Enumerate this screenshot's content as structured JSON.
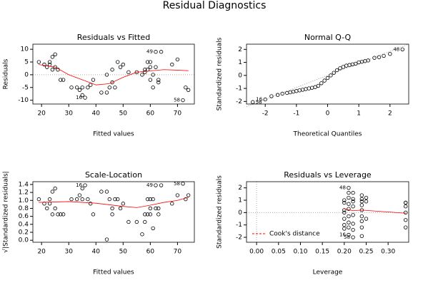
{
  "title": "Residual Diagnostics",
  "chart_data": [
    {
      "type": "scatter",
      "title": "Residuals vs Fitted",
      "x_label": "Fitted values",
      "y_label": "Residuals",
      "xlim": [
        16.8,
        76.2
      ],
      "ylim": [
        -11.5,
        12
      ],
      "xticks": [
        20,
        30,
        40,
        50,
        60,
        70
      ],
      "yticks": [
        -10,
        -5,
        0,
        5,
        10
      ],
      "hline": 0,
      "color": "#000000",
      "x": [
        19,
        21,
        22,
        23,
        23,
        24,
        24,
        25,
        25,
        26,
        27,
        28,
        31,
        33,
        34,
        35,
        35,
        36,
        37,
        38,
        39,
        42,
        44,
        44,
        45,
        46,
        46,
        47,
        48,
        49,
        50,
        52,
        55,
        57,
        58,
        58,
        59,
        59,
        60,
        60,
        60,
        61,
        61,
        62,
        62,
        63,
        63,
        64,
        68,
        70,
        72,
        73,
        74
      ],
      "values": [
        5,
        4,
        3,
        5,
        4,
        7,
        2,
        8,
        3,
        2,
        -2,
        -2,
        -5,
        -5,
        -6,
        -5,
        -8,
        -9,
        -5,
        -4,
        -2,
        -7,
        -7,
        0,
        -5,
        2,
        -3,
        -5,
        5,
        3,
        4,
        1,
        1,
        0,
        1,
        2,
        2,
        5,
        5,
        3,
        -2,
        0,
        -5,
        9,
        3,
        -3,
        -2,
        9,
        4,
        6,
        -10,
        -5,
        -6
      ],
      "point_labels": [
        null,
        null,
        null,
        null,
        null,
        null,
        null,
        null,
        null,
        null,
        null,
        null,
        null,
        null,
        null,
        null,
        null,
        "16",
        null,
        null,
        null,
        null,
        null,
        null,
        null,
        null,
        null,
        null,
        null,
        null,
        null,
        null,
        null,
        null,
        null,
        null,
        null,
        null,
        null,
        null,
        null,
        null,
        null,
        "49",
        null,
        null,
        null,
        null,
        null,
        null,
        "58",
        null,
        null
      ],
      "smooth": {
        "color": "#ff0000",
        "x": [
          19,
          25,
          30,
          35,
          40,
          45,
          50,
          55,
          60,
          65,
          70,
          74
        ],
        "values": [
          4,
          3,
          0,
          -2,
          -4,
          -3.5,
          -1,
          1,
          1.5,
          2,
          1.8,
          1.6
        ]
      }
    },
    {
      "type": "scatter",
      "title": "Normal Q-Q",
      "x_label": "Theoretical Quantiles",
      "y_label": "Standardized residuals",
      "xlim": [
        -2.6,
        2.6
      ],
      "ylim": [
        -2.2,
        2.4
      ],
      "xticks": [
        -2,
        -1,
        0,
        1,
        2
      ],
      "yticks": [
        -2,
        -1,
        0,
        1,
        2
      ],
      "color": "#000000",
      "x": [
        -2.4,
        -2.0,
        -1.8,
        -1.6,
        -1.45,
        -1.3,
        -1.2,
        -1.1,
        -1.0,
        -0.9,
        -0.8,
        -0.7,
        -0.6,
        -0.5,
        -0.4,
        -0.3,
        -0.2,
        -0.1,
        0,
        0.1,
        0.2,
        0.3,
        0.4,
        0.5,
        0.6,
        0.7,
        0.8,
        0.9,
        1.0,
        1.1,
        1.2,
        1.3,
        1.5,
        1.65,
        1.8,
        2.0,
        2.4
      ],
      "values": [
        -2.05,
        -1.85,
        -1.6,
        -1.5,
        -1.4,
        -1.35,
        -1.3,
        -1.25,
        -1.2,
        -1.15,
        -1.1,
        -1.05,
        -1.0,
        -0.95,
        -0.9,
        -0.8,
        -0.6,
        -0.4,
        -0.2,
        0,
        0.2,
        0.4,
        0.55,
        0.65,
        0.75,
        0.8,
        0.85,
        0.9,
        1.0,
        1.05,
        1.1,
        1.15,
        1.35,
        1.4,
        1.5,
        1.65,
        2.0
      ],
      "point_labels": [
        "58",
        "16",
        null,
        null,
        null,
        null,
        null,
        null,
        null,
        null,
        null,
        null,
        null,
        null,
        null,
        null,
        null,
        null,
        null,
        null,
        null,
        null,
        null,
        null,
        null,
        null,
        null,
        null,
        null,
        null,
        null,
        null,
        null,
        null,
        null,
        null,
        "48"
      ],
      "reference_line": {
        "color": "#999999",
        "x": [
          -2.6,
          2.6
        ],
        "values": [
          -2.4,
          2.4
        ]
      }
    },
    {
      "type": "scatter",
      "title": "Scale-Location",
      "x_label": "Fitted values",
      "y_label": "√|Standardized residuals|",
      "xlim": [
        16.8,
        76.2
      ],
      "ylim": [
        -0.05,
        1.47
      ],
      "xticks": [
        20,
        30,
        40,
        50,
        60,
        70
      ],
      "yticks": [
        {
          "value": 0,
          "label": "0.0"
        },
        0.2,
        0.4,
        0.6,
        0.8,
        {
          "value": 1,
          "label": "1.0"
        },
        1.2,
        1.4
      ],
      "color": "#000000",
      "x": [
        19,
        21,
        22,
        23,
        23,
        24,
        24,
        25,
        25,
        26,
        27,
        28,
        31,
        33,
        34,
        35,
        35,
        36,
        37,
        38,
        39,
        42,
        44,
        44,
        45,
        46,
        46,
        47,
        48,
        49,
        50,
        52,
        55,
        57,
        58,
        58,
        59,
        59,
        60,
        60,
        60,
        61,
        61,
        62,
        62,
        63,
        63,
        64,
        68,
        70,
        72,
        73,
        74
      ],
      "values": [
        1.03,
        0.92,
        0.8,
        1.03,
        0.92,
        1.22,
        0.65,
        1.3,
        0.8,
        0.65,
        0.65,
        0.65,
        1.03,
        1.03,
        1.13,
        1.03,
        1.3,
        1.38,
        1.03,
        0.92,
        0.65,
        1.22,
        1.22,
        0.02,
        1.03,
        0.65,
        0.8,
        1.03,
        1.03,
        0.8,
        0.92,
        0.46,
        0.46,
        0.15,
        0.46,
        0.65,
        0.65,
        1.03,
        1.03,
        0.8,
        0.65,
        0.3,
        1.03,
        1.38,
        0.8,
        0.8,
        0.65,
        1.38,
        0.92,
        1.13,
        1.42,
        1.03,
        1.13
      ],
      "point_labels": [
        null,
        null,
        null,
        null,
        null,
        null,
        null,
        null,
        null,
        null,
        null,
        null,
        null,
        null,
        null,
        null,
        null,
        "16",
        null,
        null,
        null,
        null,
        null,
        null,
        null,
        null,
        null,
        null,
        null,
        null,
        null,
        null,
        null,
        null,
        null,
        null,
        null,
        null,
        null,
        null,
        null,
        null,
        null,
        "49",
        null,
        null,
        null,
        null,
        null,
        null,
        "58",
        null,
        null
      ],
      "smooth": {
        "color": "#ff0000",
        "x": [
          19,
          30,
          40,
          50,
          55,
          60,
          65,
          70,
          74
        ],
        "values": [
          0.95,
          0.97,
          0.93,
          0.85,
          0.82,
          0.88,
          0.95,
          1.0,
          1.08
        ]
      }
    },
    {
      "type": "scatter",
      "title": "Residuals vs Leverage",
      "x_label": "Leverage",
      "y_label": "Standardized residuals",
      "xlim": [
        -0.023,
        0.347
      ],
      "ylim": [
        -2.4,
        2.5
      ],
      "xticks": [
        {
          "value": 0,
          "label": "0.00"
        },
        0.05,
        {
          "value": 0.1,
          "label": "0.10"
        },
        0.15,
        {
          "value": 0.2,
          "label": "0.20"
        },
        0.25,
        {
          "value": 0.3,
          "label": "0.30"
        }
      ],
      "yticks": [
        -2,
        -1,
        0,
        1,
        2
      ],
      "hline": 0,
      "vline": 0,
      "color": "#000000",
      "x": [
        0.2,
        0.2,
        0.2,
        0.2,
        0.2,
        0.2,
        0.2,
        0.21,
        0.21,
        0.21,
        0.21,
        0.21,
        0.21,
        0.21,
        0.21,
        0.21,
        0.22,
        0.22,
        0.22,
        0.22,
        0.22,
        0.22,
        0.22,
        0.22,
        0.24,
        0.24,
        0.24,
        0.24,
        0.24,
        0.24,
        0.24,
        0.24,
        0.24,
        0.25,
        0.25,
        0.25,
        0.34,
        0.34,
        0.34,
        0.34,
        0.34,
        0.34
      ],
      "values": [
        -1.3,
        -1.0,
        -0.5,
        0,
        0.2,
        0.8,
        1.0,
        -1.8,
        -1.2,
        -0.8,
        -0.3,
        0.3,
        0.7,
        1.2,
        1.6,
        2.0,
        -2.0,
        -1.4,
        -0.9,
        -0.2,
        0.5,
        0.9,
        1.1,
        1.6,
        -1.9,
        -1.2,
        -0.7,
        -0.3,
        0.2,
        0.6,
        0.9,
        1.1,
        1.4,
        -0.5,
        0.9,
        1.2,
        -1.2,
        -0.6,
        0,
        0.5,
        0.8,
        0.8
      ],
      "point_labels": [
        null,
        null,
        null,
        null,
        null,
        null,
        null,
        "16",
        null,
        null,
        null,
        null,
        null,
        null,
        null,
        "48",
        "58",
        null,
        null,
        null,
        null,
        null,
        null,
        null,
        null,
        null,
        null,
        null,
        null,
        null,
        null,
        null,
        null,
        null,
        null,
        null,
        null,
        null,
        null,
        null,
        null,
        null
      ],
      "smooth": {
        "color": "#ff0000",
        "x": [
          0.2,
          0.22,
          0.24,
          0.3,
          0.34
        ],
        "values": [
          0.3,
          0.15,
          0.2,
          0.05,
          -0.05
        ]
      },
      "legend": {
        "text": "Cook's distance",
        "color": "#ff0000",
        "position": "bottom-left"
      }
    }
  ]
}
